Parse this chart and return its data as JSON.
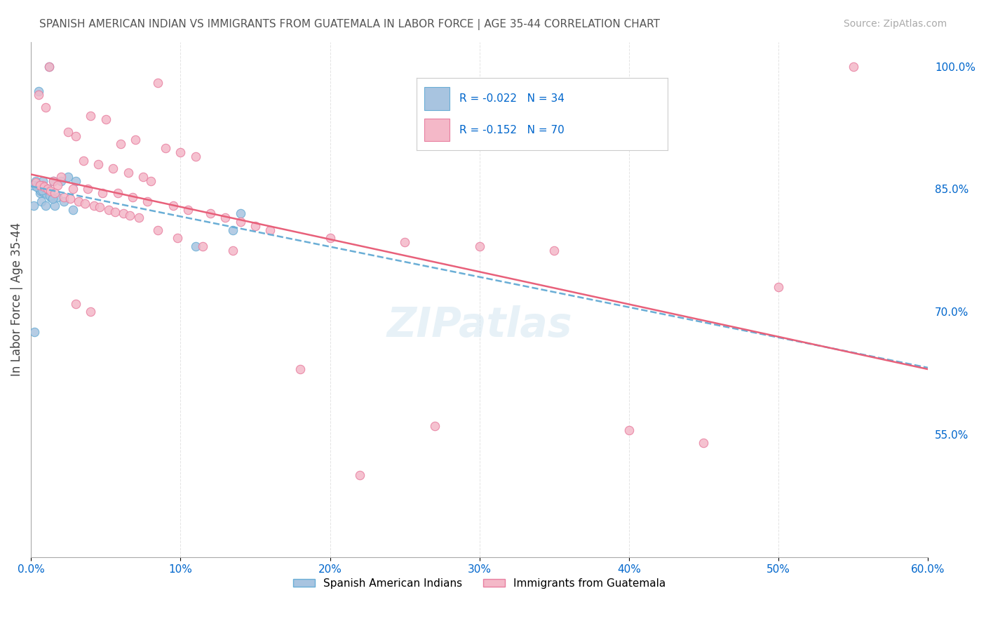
{
  "title": "SPANISH AMERICAN INDIAN VS IMMIGRANTS FROM GUATEMALA IN LABOR FORCE | AGE 35-44 CORRELATION CHART",
  "source": "Source: ZipAtlas.com",
  "ylabel": "In Labor Force | Age 35-44",
  "right_yticks": [
    100.0,
    85.0,
    70.0,
    55.0
  ],
  "legend_blue_R": "R = -0.022",
  "legend_blue_N": "N = 34",
  "legend_pink_R": "R = -0.152",
  "legend_pink_N": "N = 70",
  "legend_label_blue": "Spanish American Indians",
  "legend_label_pink": "Immigrants from Guatemala",
  "xlim": [
    0.0,
    60.0
  ],
  "ylim": [
    40.0,
    103.0
  ],
  "blue_color": "#a8c4e0",
  "blue_edge_color": "#6aaed6",
  "pink_color": "#f4b8c8",
  "pink_edge_color": "#e87fa0",
  "trend_blue_color": "#6aaed6",
  "trend_pink_color": "#e8607a",
  "background_color": "#ffffff",
  "grid_color": "#dddddd",
  "title_color": "#555555",
  "axis_label_color": "#0066cc",
  "blue_x": [
    0.5,
    1.2,
    0.3,
    0.8,
    1.5,
    2.0,
    2.5,
    3.0,
    0.4,
    0.9,
    1.1,
    0.6,
    1.8,
    1.3,
    2.2,
    0.7,
    1.6,
    0.2,
    1.0,
    2.8,
    0.15,
    0.45,
    0.55,
    0.65,
    0.85,
    1.05,
    1.25,
    1.45,
    0.35,
    0.75,
    14.0,
    13.5,
    11.0,
    0.25
  ],
  "blue_y": [
    97.0,
    100.0,
    86.0,
    86.0,
    86.0,
    86.0,
    86.5,
    86.0,
    85.5,
    85.0,
    85.0,
    84.5,
    84.0,
    84.0,
    83.5,
    83.5,
    83.0,
    83.0,
    83.0,
    82.5,
    85.5,
    85.2,
    85.0,
    84.8,
    84.6,
    84.4,
    84.2,
    83.8,
    85.3,
    84.9,
    82.0,
    80.0,
    78.0,
    67.5
  ],
  "pink_x": [
    1.2,
    8.5,
    0.5,
    1.0,
    4.0,
    5.0,
    2.5,
    3.0,
    7.0,
    6.0,
    9.0,
    10.0,
    11.0,
    3.5,
    4.5,
    5.5,
    6.5,
    7.5,
    8.0,
    2.0,
    1.5,
    0.8,
    1.8,
    2.8,
    3.8,
    4.8,
    5.8,
    6.8,
    7.8,
    9.5,
    10.5,
    12.0,
    13.0,
    14.0,
    15.0,
    16.0,
    20.0,
    25.0,
    30.0,
    35.0,
    55.0,
    0.3,
    0.6,
    0.9,
    1.1,
    1.3,
    1.6,
    2.2,
    2.6,
    3.2,
    3.6,
    4.2,
    4.6,
    5.2,
    5.6,
    6.2,
    6.6,
    7.2,
    8.5,
    9.8,
    11.5,
    13.5,
    27.0,
    40.0,
    45.0,
    50.0,
    3.0,
    4.0,
    18.0,
    22.0
  ],
  "pink_y": [
    100.0,
    98.0,
    96.5,
    95.0,
    94.0,
    93.5,
    92.0,
    91.5,
    91.0,
    90.5,
    90.0,
    89.5,
    89.0,
    88.5,
    88.0,
    87.5,
    87.0,
    86.5,
    86.0,
    86.5,
    86.0,
    85.5,
    85.5,
    85.0,
    85.0,
    84.5,
    84.5,
    84.0,
    83.5,
    83.0,
    82.5,
    82.0,
    81.5,
    81.0,
    80.5,
    80.0,
    79.0,
    78.5,
    78.0,
    77.5,
    100.0,
    85.8,
    85.5,
    85.3,
    85.0,
    84.8,
    84.5,
    84.0,
    83.8,
    83.5,
    83.2,
    83.0,
    82.8,
    82.5,
    82.2,
    82.0,
    81.8,
    81.5,
    80.0,
    79.0,
    78.0,
    77.5,
    56.0,
    55.5,
    54.0,
    73.0,
    71.0,
    70.0,
    63.0,
    50.0
  ]
}
